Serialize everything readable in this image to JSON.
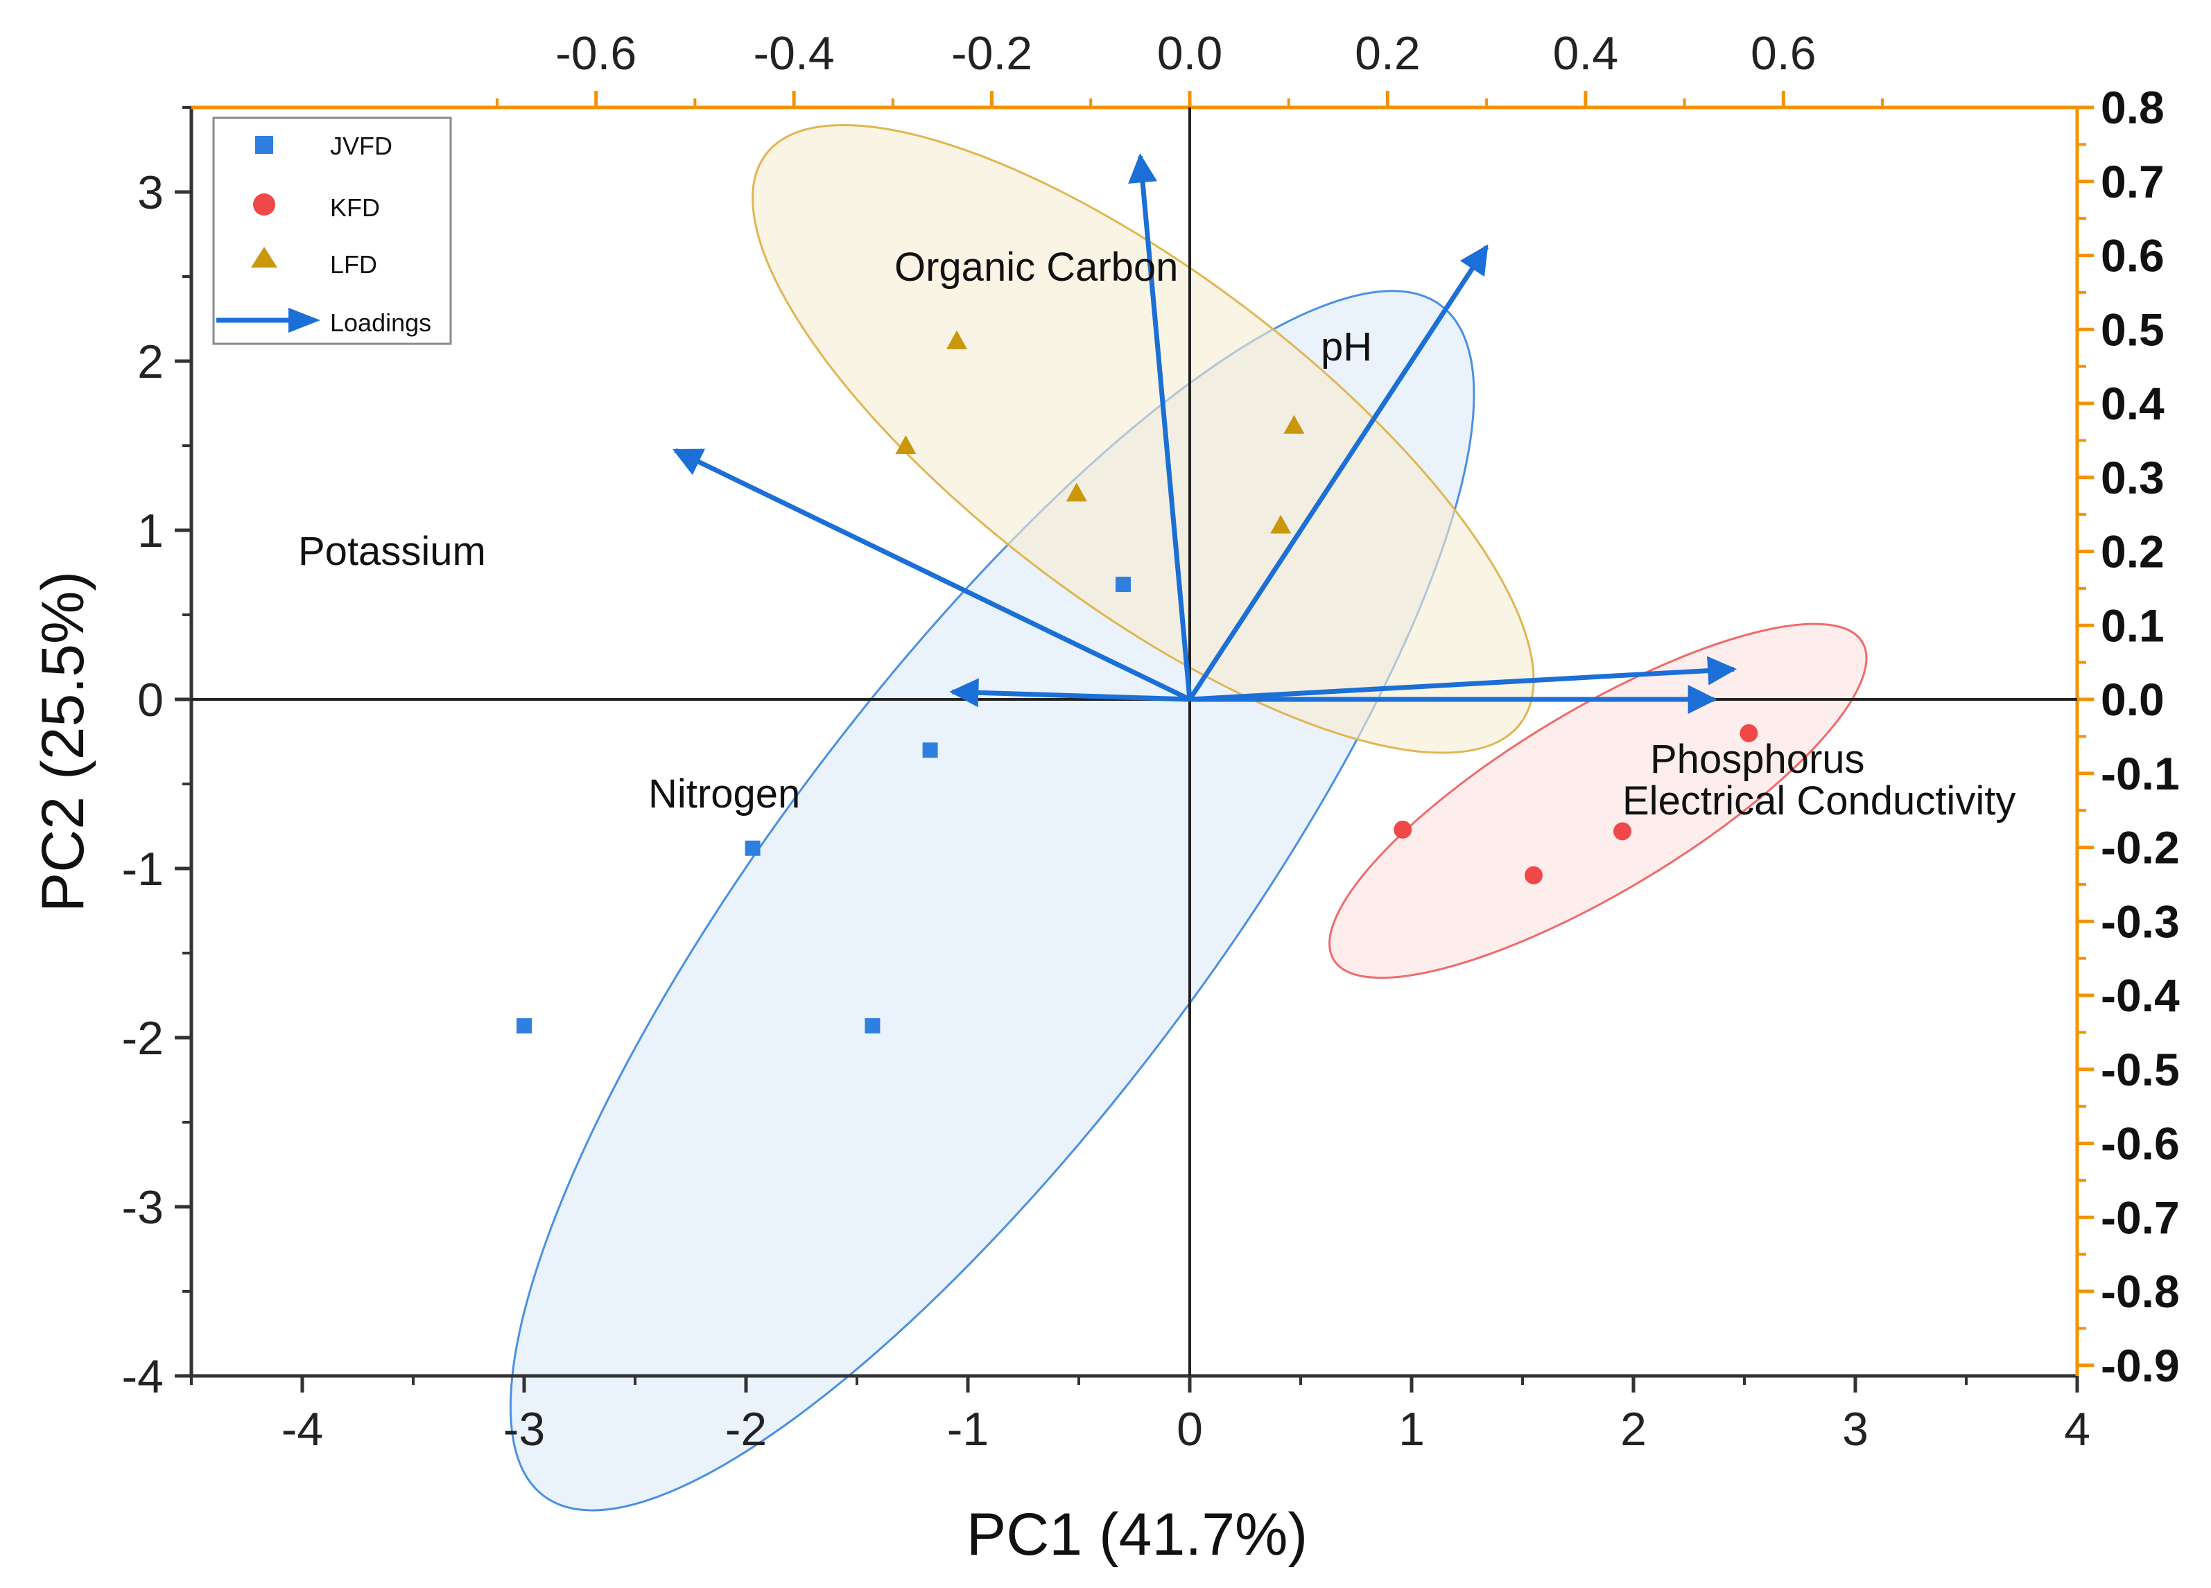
{
  "chart_data": {
    "type": "scatter",
    "subtype": "PCA biplot",
    "xlabel": "PC1 (41.7%)",
    "ylabel": "PC2 (25.5%)",
    "xlim": [
      -4.5,
      4
    ],
    "ylim": [
      -4,
      3.5
    ],
    "x_ticks": [
      -4,
      -3,
      -2,
      -1,
      0,
      1,
      2,
      3,
      4
    ],
    "y_ticks": [
      -4,
      -3,
      -2,
      -1,
      0,
      1,
      2,
      3
    ],
    "x_tick_labels": [
      "-4",
      "-3",
      "-2",
      "-1",
      "0",
      "1",
      "2",
      "3",
      "4"
    ],
    "y_tick_labels": [
      "-4",
      "-3",
      "-2",
      "-1",
      "0",
      "1",
      "2",
      "3"
    ],
    "top_axis": {
      "lim": [
        -0.8,
        0.8
      ],
      "ticks": [
        -0.6,
        -0.4,
        -0.2,
        0.0,
        0.2,
        0.4,
        0.6
      ],
      "tick_labels": [
        "-0.6",
        "-0.4",
        "-0.2",
        "0.0",
        "0.2",
        "0.4",
        "0.6"
      ]
    },
    "right_axis": {
      "lim": [
        -0.9,
        0.8
      ],
      "ticks": [
        -0.9,
        -0.8,
        -0.7,
        -0.6,
        -0.5,
        -0.4,
        -0.3,
        -0.2,
        -0.1,
        0.0,
        0.1,
        0.2,
        0.3,
        0.4,
        0.5,
        0.6,
        0.7,
        0.8
      ],
      "tick_labels": [
        "-0.9",
        "-0.8",
        "-0.7",
        "-0.6",
        "-0.5",
        "-0.4",
        "-0.3",
        "-0.2",
        "-0.1",
        "0.0",
        "0.1",
        "0.2",
        "0.3",
        "0.4",
        "0.5",
        "0.6",
        "0.7",
        "0.8"
      ],
      "color": "#f39200"
    },
    "series": [
      {
        "name": "JVFD",
        "marker": "square",
        "color": "#2f7fe0",
        "points": [
          [
            -0.3,
            0.68
          ],
          [
            -1.17,
            -0.3
          ],
          [
            -1.97,
            -0.88
          ],
          [
            -1.43,
            -1.93
          ],
          [
            -3.0,
            -1.93
          ]
        ]
      },
      {
        "name": "KFD",
        "marker": "circle",
        "color": "#f04848",
        "points": [
          [
            2.52,
            -0.2
          ],
          [
            0.96,
            -0.77
          ],
          [
            1.95,
            -0.78
          ],
          [
            1.55,
            -1.04
          ]
        ]
      },
      {
        "name": "LFD",
        "marker": "triangle",
        "color": "#c9960c",
        "points": [
          [
            -1.05,
            2.12
          ],
          [
            -1.28,
            1.5
          ],
          [
            -0.51,
            1.22
          ],
          [
            0.47,
            1.62
          ],
          [
            0.41,
            1.03
          ]
        ]
      }
    ],
    "ellipses": [
      {
        "group": "JVFD",
        "center": [
          -0.89,
          -1.19
        ],
        "semi_axes": [
          3.36,
          0.99
        ],
        "angle_deg": 53,
        "fill": "#dce9f9",
        "stroke": "#4a90e2"
      },
      {
        "group": "KFD",
        "center": [
          1.84,
          -0.6
        ],
        "semi_axes": [
          1.39,
          0.41
        ],
        "angle_deg": 31,
        "fill": "#fbe1e1",
        "stroke": "#ef6b6b"
      },
      {
        "group": "LFD",
        "center": [
          -0.21,
          1.54
        ],
        "semi_axes": [
          2.13,
          0.75
        ],
        "angle_deg": -37,
        "fill": "#f6edd2",
        "stroke": "#e0b652"
      }
    ],
    "loadings_name": "Loadings",
    "loadings_color": "#1b6fd6",
    "loadings": [
      {
        "name": "Organic Carbon",
        "x": -0.05,
        "y": 0.72
      },
      {
        "name": "pH",
        "x": 0.3,
        "y": 0.6
      },
      {
        "name": "Potassium",
        "x": -0.52,
        "y": 0.33
      },
      {
        "name": "Phosphorus",
        "x": 0.55,
        "y": 0.04
      },
      {
        "name": "Electrical Conductivity",
        "x": 0.53,
        "y": 0.0
      },
      {
        "name": "Nitrogen",
        "x": -0.24,
        "y": 0.01
      }
    ],
    "legend": {
      "position": "top-left",
      "entries": [
        "JVFD",
        "KFD",
        "LFD",
        "Loadings"
      ]
    },
    "grid": false
  }
}
